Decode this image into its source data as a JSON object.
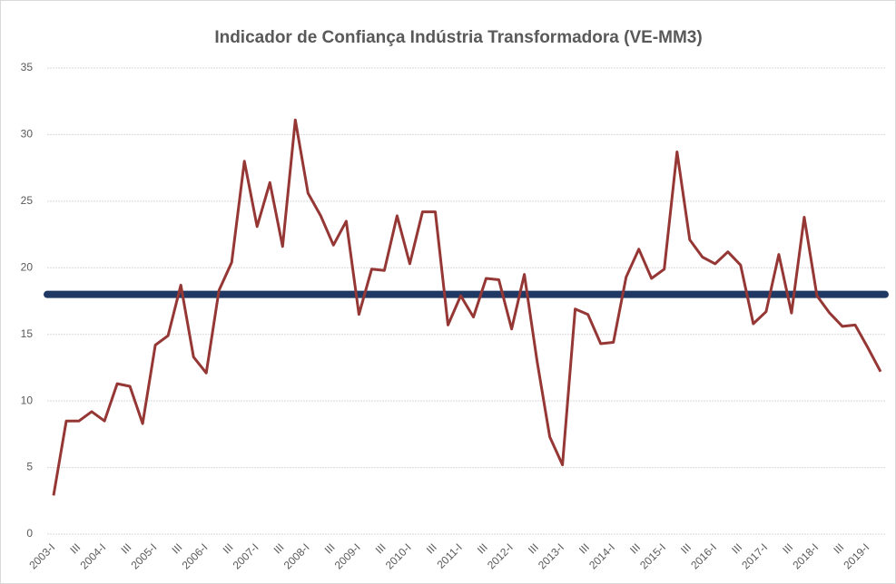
{
  "chart_data": {
    "type": "line",
    "title": "Indicador de Confiança Indústria Transformadora (VE-MM3)",
    "categories": [
      "2003-I",
      null,
      "III",
      null,
      "2004-I",
      null,
      "III",
      null,
      "2005-I",
      null,
      "III",
      null,
      "2006-I",
      null,
      "III",
      null,
      "2007-I",
      null,
      "III",
      null,
      "2008-I",
      null,
      "III",
      null,
      "2009-I",
      null,
      "III",
      null,
      "2010-I",
      null,
      "III",
      null,
      "2011-I",
      null,
      "III",
      null,
      "2012-I",
      null,
      "III",
      null,
      "2013-I",
      null,
      "III",
      null,
      "2014-I",
      null,
      "III",
      null,
      "2015-I",
      null,
      "III",
      null,
      "2016-I",
      null,
      "III",
      null,
      "2017-I",
      null,
      "III",
      null,
      "2018-I",
      null,
      "III",
      null,
      "2019-I",
      null
    ],
    "series": [
      {
        "color": "#953735",
        "values": [
          2.9,
          8.5,
          8.5,
          9.2,
          8.5,
          11.3,
          11.1,
          8.3,
          14.2,
          14.9,
          18.7,
          13.3,
          12.1,
          18.3,
          20.4,
          28.0,
          23.1,
          26.4,
          21.6,
          31.1,
          25.6,
          23.9,
          21.7,
          23.5,
          16.5,
          19.9,
          19.8,
          23.9,
          20.3,
          24.2,
          24.2,
          15.7,
          17.9,
          16.3,
          19.2,
          19.1,
          15.4,
          19.5,
          13.0,
          7.3,
          5.2,
          16.9,
          16.5,
          14.3,
          14.4,
          19.3,
          21.4,
          19.2,
          19.9,
          28.7,
          22.1,
          20.8,
          20.3,
          21.2,
          20.2,
          15.8,
          16.7,
          21.0,
          16.6,
          23.8,
          17.9,
          16.6,
          15.6,
          15.7,
          14.0,
          12.2
        ]
      }
    ],
    "reference_line": {
      "value": 18,
      "color": "#1f3864"
    },
    "ylim": [
      0,
      35
    ],
    "yticks": [
      0,
      5,
      10,
      15,
      20,
      25,
      30,
      35
    ],
    "grid": true
  }
}
